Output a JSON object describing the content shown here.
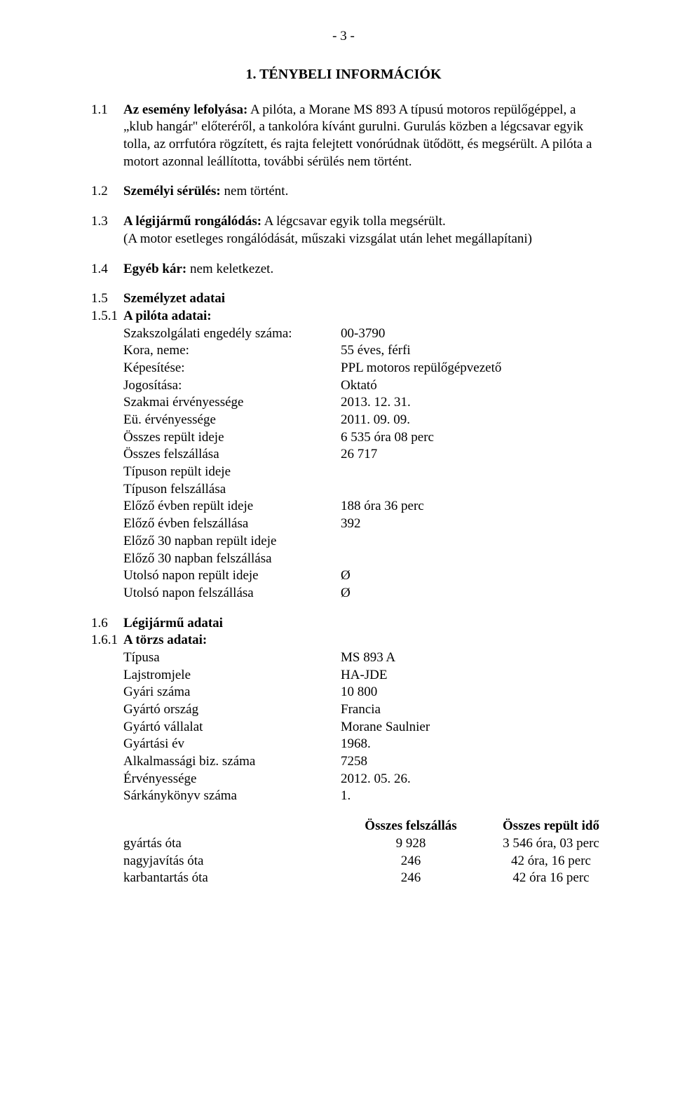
{
  "page_number": "- 3 -",
  "heading": "1. TÉNYBELI INFORMÁCIÓK",
  "s11": {
    "num": "1.1",
    "label": "Az esemény lefolyása:",
    "text_after_label": " A pilóta, a Morane MS 893 A típusú motoros repülőgéppel, a „klub hangár\" előteréről, a tankolóra kívánt gurulni. Gurulás közben a légcsavar egyik tolla, az orrfutóra rögzített, és rajta felejtett vonórúdnak ütődött, és megsérült. A pilóta a motort azonnal leállította, további sérülés nem történt."
  },
  "s12": {
    "num": "1.2",
    "label": "Személyi sérülés:",
    "text": " nem történt."
  },
  "s13": {
    "num": "1.3",
    "label": "A légijármű rongálódás:",
    "text": " A légcsavar egyik tolla megsérült.",
    "line2": "(A motor esetleges rongálódását, műszaki vizsgálat után lehet megállapítani)"
  },
  "s14": {
    "num": "1.4",
    "label": "Egyéb kár:",
    "text": " nem keletkezet."
  },
  "s15": {
    "num": "1.5",
    "label": "Személyzet adatai"
  },
  "s151": {
    "num": "1.5.1",
    "label": "A pilóta adatai:",
    "rows": [
      {
        "k": "Szakszolgálati engedély száma:",
        "v": "00-3790"
      },
      {
        "k": "Kora, neme:",
        "v": "55 éves, férfi"
      },
      {
        "k": "Képesítése:",
        "v": "PPL motoros repülőgépvezető"
      },
      {
        "k": "Jogosítása:",
        "v": "Oktató"
      },
      {
        "k": "Szakmai érvényessége",
        "v": "2013. 12. 31."
      },
      {
        "k": "Eü. érvényessége",
        "v": "2011. 09. 09."
      },
      {
        "k": "Összes repült ideje",
        "v": "6 535 óra 08 perc"
      },
      {
        "k": "Összes felszállása",
        "v": "26 717"
      },
      {
        "k": "Típuson repült ideje",
        "v": ""
      },
      {
        "k": "Típuson felszállása",
        "v": ""
      },
      {
        "k": "Előző évben repült ideje",
        "v": "188 óra 36 perc"
      },
      {
        "k": "Előző évben felszállása",
        "v": "392"
      },
      {
        "k": "Előző 30 napban repült ideje",
        "v": ""
      },
      {
        "k": "Előző 30 napban felszállása",
        "v": ""
      },
      {
        "k": "Utolsó napon repült ideje",
        "v": "Ø"
      },
      {
        "k": "Utolsó napon felszállása",
        "v": "Ø"
      }
    ]
  },
  "s16": {
    "num": "1.6",
    "label": "Légijármű adatai"
  },
  "s161": {
    "num": "1.6.1",
    "label": "A törzs adatai:",
    "rows": [
      {
        "k": "Típusa",
        "v": "MS 893 A"
      },
      {
        "k": "Lajstromjele",
        "v": "HA-JDE"
      },
      {
        "k": "Gyári száma",
        "v": "10 800"
      },
      {
        "k": "Gyártó ország",
        "v": "Francia"
      },
      {
        "k": "Gyártó vállalat",
        "v": "Morane Saulnier"
      },
      {
        "k": "Gyártási év",
        "v": "1968."
      },
      {
        "k": "Alkalmassági biz. száma",
        "v": "7258"
      },
      {
        "k": "Érvényessége",
        "v": "2012. 05. 26."
      },
      {
        "k": "Sárkánykönyv száma",
        "v": "1."
      }
    ]
  },
  "tbl": {
    "head": {
      "c1": "",
      "c2": "Összes felszállás",
      "c3": "Összes repült idő"
    },
    "rows": [
      {
        "c1": "gyártás óta",
        "c2": "9 928",
        "c3": "3 546 óra, 03 perc"
      },
      {
        "c1": "nagyjavítás óta",
        "c2": "246",
        "c3": "42 óra, 16 perc"
      },
      {
        "c1": "karbantartás óta",
        "c2": "246",
        "c3": "42 óra 16 perc"
      }
    ]
  }
}
